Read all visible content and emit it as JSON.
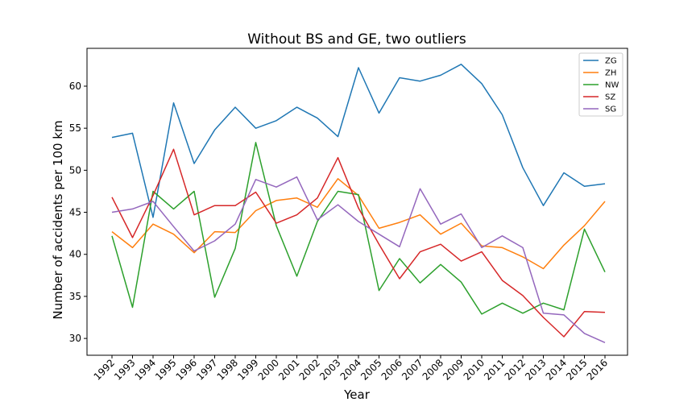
{
  "chart_data": {
    "type": "line",
    "title": "Without BS and GE, two outliers",
    "xlabel": "Year",
    "ylabel": "Number of accidents per 100 km",
    "x": [
      "1992",
      "1993",
      "1994",
      "1995",
      "1996",
      "1997",
      "1998",
      "1999",
      "2000",
      "2001",
      "2002",
      "2003",
      "2004",
      "2005",
      "2006",
      "2007",
      "2008",
      "2009",
      "2010",
      "2011",
      "2012",
      "2013",
      "2014",
      "2015",
      "2016"
    ],
    "yticks": [
      30,
      35,
      40,
      45,
      50,
      55,
      60
    ],
    "ylim": [
      28,
      64.5
    ],
    "legend_position": "top-right",
    "series": [
      {
        "name": "ZG",
        "color": "#1f77b4",
        "values": [
          53.9,
          54.4,
          44.4,
          58.0,
          50.8,
          54.8,
          57.5,
          55.0,
          55.9,
          57.5,
          56.2,
          54.0,
          62.2,
          56.8,
          61.0,
          60.6,
          61.3,
          62.6,
          60.3,
          56.6,
          50.3,
          45.8,
          49.7,
          48.1,
          48.4
        ]
      },
      {
        "name": "ZH",
        "color": "#ff7f0e",
        "values": [
          42.7,
          40.8,
          43.6,
          42.4,
          40.2,
          42.7,
          42.6,
          45.2,
          46.4,
          46.7,
          45.6,
          49.0,
          47.0,
          43.1,
          43.8,
          44.7,
          42.4,
          43.7,
          41.0,
          40.8,
          39.7,
          38.3,
          41.1,
          43.4,
          46.3
        ]
      },
      {
        "name": "NW",
        "color": "#2ca02c",
        "values": [
          42.2,
          33.7,
          47.5,
          45.4,
          47.5,
          34.9,
          40.7,
          53.3,
          43.4,
          37.4,
          43.9,
          47.5,
          47.1,
          35.7,
          39.5,
          36.6,
          38.8,
          36.7,
          32.9,
          34.2,
          33.0,
          34.2,
          33.4,
          43.0,
          37.9
        ]
      },
      {
        "name": "SZ",
        "color": "#d62728",
        "values": [
          46.8,
          42.0,
          47.0,
          52.5,
          44.7,
          45.8,
          45.8,
          47.4,
          43.7,
          44.7,
          46.7,
          51.5,
          45.5,
          41.2,
          37.1,
          40.3,
          41.2,
          39.2,
          40.3,
          36.9,
          35.1,
          32.5,
          30.2,
          33.2,
          33.1
        ]
      },
      {
        "name": "SG",
        "color": "#9467bd",
        "values": [
          45.0,
          45.4,
          46.3,
          43.3,
          40.4,
          41.6,
          43.6,
          48.9,
          48.0,
          49.2,
          44.1,
          45.9,
          43.9,
          42.4,
          40.9,
          47.8,
          43.6,
          44.8,
          40.8,
          42.2,
          40.8,
          33.0,
          32.8,
          30.6,
          29.5
        ]
      }
    ]
  }
}
